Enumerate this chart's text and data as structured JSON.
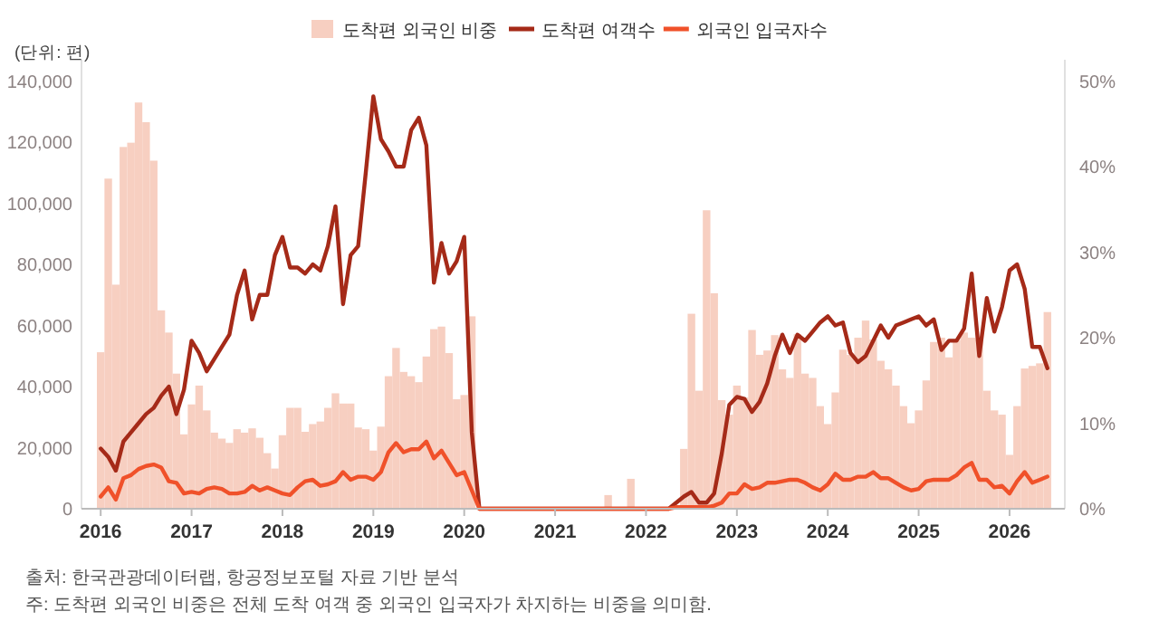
{
  "chart_data": {
    "type": "bar",
    "ylabel": "(단위: 편)",
    "legend": "top",
    "grid": false,
    "annotations": [
      "출처: 한국관광데이터랩, 항공정보포털 자료 기반 분석",
      "주: 도착편 외국인 비중은 전체 도착 여객 중 외국인 입국자가 차지하는 비중을 의미함."
    ],
    "xlim": [
      "2015-10-15",
      "2026-08-10"
    ],
    "xticks": [
      {
        "value": "2016-01",
        "label": "2016"
      },
      {
        "value": "2017-01",
        "label": "2017"
      },
      {
        "value": "2018-01",
        "label": "2018"
      },
      {
        "value": "2019-01",
        "label": "2019"
      },
      {
        "value": "2020-01",
        "label": "2020"
      },
      {
        "value": "2021-01",
        "label": "2021"
      },
      {
        "value": "2022-01",
        "label": "2022"
      },
      {
        "value": "2023-01",
        "label": "2023"
      },
      {
        "value": "2024-01",
        "label": "2024"
      },
      {
        "value": "2025-01",
        "label": "2025"
      },
      {
        "value": "2026-01",
        "label": "2026"
      }
    ],
    "ylim": [
      0,
      147000
    ],
    "yticks": [
      {
        "value": 0,
        "label": "0"
      },
      {
        "value": 20000,
        "label": "20,000"
      },
      {
        "value": 40000,
        "label": "40,000"
      },
      {
        "value": 60000,
        "label": "60,000"
      },
      {
        "value": 80000,
        "label": "80,000"
      },
      {
        "value": 100000,
        "label": "100,000"
      },
      {
        "value": 120000,
        "label": "120,000"
      },
      {
        "value": 140000,
        "label": "140,000"
      }
    ],
    "y2lim": [
      0,
      52.5
    ],
    "y2ticks": [
      {
        "value": 0,
        "label": "0%"
      },
      {
        "value": 10,
        "label": "10%"
      },
      {
        "value": 20,
        "label": "20%"
      },
      {
        "value": 30,
        "label": "30%"
      },
      {
        "value": 40,
        "label": "40%"
      },
      {
        "value": 50,
        "label": "50%"
      }
    ],
    "x": [
      "2016-01",
      "2016-02",
      "2016-03",
      "2016-04",
      "2016-05",
      "2016-06",
      "2016-07",
      "2016-08",
      "2016-09",
      "2016-10",
      "2016-11",
      "2016-12",
      "2017-01",
      "2017-02",
      "2017-03",
      "2017-04",
      "2017-05",
      "2017-06",
      "2017-07",
      "2017-08",
      "2017-09",
      "2017-10",
      "2017-11",
      "2017-12",
      "2018-01",
      "2018-02",
      "2018-03",
      "2018-04",
      "2018-05",
      "2018-06",
      "2018-07",
      "2018-08",
      "2018-09",
      "2018-10",
      "2018-11",
      "2018-12",
      "2019-01",
      "2019-02",
      "2019-03",
      "2019-04",
      "2019-05",
      "2019-06",
      "2019-07",
      "2019-08",
      "2019-09",
      "2019-10",
      "2019-11",
      "2019-12",
      "2020-01",
      "2020-02",
      "2020-03",
      "2020-04",
      "2020-05",
      "2020-06",
      "2020-07",
      "2020-08",
      "2020-09",
      "2020-10",
      "2020-11",
      "2020-12",
      "2021-01",
      "2021-02",
      "2021-03",
      "2021-04",
      "2021-05",
      "2021-06",
      "2021-07",
      "2021-08",
      "2021-09",
      "2021-10",
      "2021-11",
      "2021-12",
      "2022-01",
      "2022-02",
      "2022-03",
      "2022-04",
      "2022-05",
      "2022-06",
      "2022-07",
      "2022-08",
      "2022-09",
      "2022-10",
      "2022-11",
      "2022-12",
      "2023-01",
      "2023-02",
      "2023-03",
      "2023-04",
      "2023-05",
      "2023-06",
      "2023-07",
      "2023-08",
      "2023-09",
      "2023-10",
      "2023-11",
      "2023-12",
      "2024-01",
      "2024-02",
      "2024-03",
      "2024-04",
      "2024-05",
      "2024-06",
      "2024-07",
      "2024-08",
      "2024-09",
      "2024-10",
      "2024-11",
      "2024-12",
      "2025-01",
      "2025-02",
      "2025-03",
      "2025-04",
      "2025-05",
      "2025-06",
      "2025-07",
      "2025-08",
      "2025-09",
      "2025-10",
      "2025-11",
      "2025-12",
      "2026-01",
      "2026-02",
      "2026-03",
      "2026-04",
      "2026-05",
      "2026-06"
    ],
    "series": [
      {
        "name": "도착편 외국인 비중",
        "axis": "y2",
        "color": "#f7cfc1",
        "values": [
          18.3,
          38.6,
          26.2,
          42.3,
          42.8,
          47.5,
          45.2,
          40.7,
          23.2,
          20.6,
          15.8,
          8.7,
          12.2,
          14.4,
          11.5,
          8.9,
          8.2,
          7.7,
          9.3,
          8.9,
          9.4,
          8.3,
          6.5,
          4.7,
          8.6,
          11.8,
          11.8,
          9.0,
          9.9,
          10.2,
          11.8,
          13.5,
          12.3,
          12.3,
          9.5,
          9.3,
          6.8,
          9.6,
          15.5,
          18.8,
          16.0,
          15.5,
          14.8,
          17.8,
          21.0,
          21.3,
          18.2,
          12.8,
          13.3,
          22.5,
          0,
          0,
          0,
          0,
          0,
          0,
          0,
          0,
          0,
          0,
          0,
          0,
          0,
          0,
          0,
          0,
          0,
          1.6,
          0,
          0,
          3.5,
          0,
          0,
          0,
          0,
          0,
          0,
          7.0,
          22.8,
          13.8,
          34.9,
          25.2,
          12.7,
          11,
          14.4,
          13,
          20.9,
          18,
          18.5,
          20.3,
          16.3,
          15.3,
          20.4,
          15.8,
          15.3,
          12.0,
          9.9,
          13.6,
          18.6,
          18.0,
          20.0,
          22.0,
          19.8,
          17.3,
          16.3,
          14.4,
          12.0,
          10.0,
          11.5,
          15.0,
          19.5,
          20.0,
          17.7,
          19.7,
          20.6,
          20.0,
          19.8,
          13.8,
          11.5,
          11.0,
          6.3,
          12.0,
          16.4,
          16.7,
          17.0,
          23.0
        ]
      },
      {
        "name": "도착편 여객수",
        "type": "line",
        "color": "#a52a18",
        "values": [
          19700,
          17000,
          12500,
          22000,
          25000,
          28000,
          31000,
          33000,
          37000,
          40000,
          31000,
          39000,
          55000,
          51000,
          45000,
          49000,
          53000,
          57000,
          70000,
          78000,
          62000,
          70000,
          70000,
          83000,
          89000,
          79000,
          79000,
          77000,
          80000,
          78000,
          86000,
          99000,
          67000,
          83000,
          86000,
          110000,
          135000,
          121000,
          117000,
          112000,
          112000,
          124000,
          128000,
          119000,
          74000,
          87000,
          77000,
          81000,
          89000,
          25000,
          0,
          0,
          0,
          0,
          0,
          0,
          0,
          0,
          0,
          0,
          0,
          0,
          0,
          0,
          0,
          0,
          0,
          0,
          0,
          0,
          0,
          0,
          0,
          0,
          0,
          0,
          2000,
          4000,
          5500,
          2000,
          2000,
          5000,
          18000,
          34000,
          36600,
          36000,
          31700,
          35000,
          41000,
          50000,
          57000,
          51000,
          57000,
          55000,
          58000,
          61000,
          63000,
          60000,
          61000,
          51000,
          48000,
          50000,
          55000,
          60000,
          56000,
          60000,
          61000,
          62000,
          63000,
          60000,
          62000,
          52000,
          55000,
          55000,
          59000,
          77000,
          50000,
          69000,
          58000,
          66000,
          78000,
          80000,
          72000,
          53000,
          53000,
          46000
        ]
      },
      {
        "name": "외국인 입국자수",
        "type": "line",
        "color": "#f0512a",
        "values": [
          4000,
          7000,
          3000,
          10000,
          11000,
          13000,
          14000,
          14500,
          13500,
          9000,
          8500,
          5000,
          5500,
          5000,
          6500,
          7000,
          6500,
          5000,
          5000,
          5500,
          7500,
          6000,
          7000,
          6000,
          5000,
          4500,
          7000,
          9000,
          9500,
          7500,
          8000,
          9000,
          12000,
          9500,
          10500,
          10500,
          9500,
          12000,
          18500,
          21500,
          18500,
          19500,
          19500,
          22000,
          16500,
          19000,
          15000,
          11000,
          12000,
          6000,
          0,
          0,
          0,
          0,
          0,
          0,
          0,
          0,
          0,
          0,
          0,
          0,
          0,
          0,
          0,
          0,
          0,
          0,
          0,
          0,
          0,
          0,
          0,
          0,
          0,
          0,
          500,
          500,
          500,
          500,
          500,
          1000,
          2000,
          5000,
          5000,
          8000,
          6500,
          7000,
          8500,
          8500,
          9000,
          9500,
          9500,
          8500,
          7000,
          6000,
          8000,
          11500,
          9500,
          9500,
          10500,
          10500,
          12000,
          10000,
          10000,
          8500,
          7000,
          6000,
          6500,
          9000,
          9500,
          9500,
          9500,
          11000,
          13500,
          15000,
          9500,
          9500,
          7000,
          7500,
          5000,
          9000,
          12000,
          8500,
          9500,
          10500
        ]
      }
    ]
  }
}
